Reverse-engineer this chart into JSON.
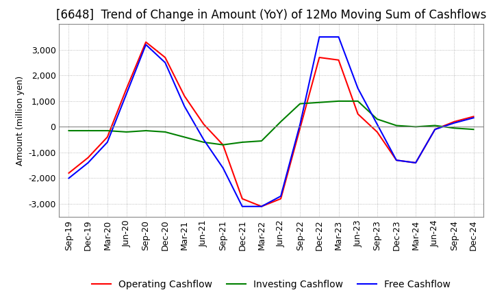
{
  "title": "[6648]  Trend of Change in Amount (YoY) of 12Mo Moving Sum of Cashflows",
  "ylabel": "Amount (million yen)",
  "ylim": [
    -3500,
    4000
  ],
  "yticks": [
    -3000,
    -2000,
    -1000,
    0,
    1000,
    2000,
    3000
  ],
  "x_labels": [
    "Sep-19",
    "Dec-19",
    "Mar-20",
    "Jun-20",
    "Sep-20",
    "Dec-20",
    "Mar-21",
    "Jun-21",
    "Sep-21",
    "Dec-21",
    "Mar-22",
    "Jun-22",
    "Sep-22",
    "Dec-22",
    "Mar-23",
    "Jun-23",
    "Sep-23",
    "Dec-23",
    "Mar-24",
    "Jun-24",
    "Sep-24",
    "Dec-24"
  ],
  "operating": [
    -1800,
    -1200,
    -400,
    1500,
    3300,
    2700,
    1200,
    100,
    -700,
    -2800,
    -3100,
    -2800,
    -50,
    2700,
    2600,
    500,
    -200,
    -1300,
    -1400,
    -100,
    200,
    400
  ],
  "investing": [
    -150,
    -150,
    -150,
    -200,
    -150,
    -200,
    -400,
    -600,
    -700,
    -600,
    -550,
    200,
    900,
    950,
    1000,
    1000,
    300,
    50,
    0,
    50,
    -50,
    -100
  ],
  "free": [
    -2000,
    -1400,
    -600,
    1300,
    3200,
    2500,
    800,
    -500,
    -1600,
    -3100,
    -3100,
    -2700,
    100,
    3500,
    3500,
    1500,
    100,
    -1300,
    -1400,
    -100,
    150,
    350
  ],
  "operating_color": "#ff0000",
  "investing_color": "#008000",
  "free_color": "#0000ff",
  "background_color": "#ffffff",
  "grid_color": "#aaaaaa",
  "zeroline_color": "#888888",
  "title_fontsize": 12,
  "axis_fontsize": 9,
  "legend_fontsize": 10
}
